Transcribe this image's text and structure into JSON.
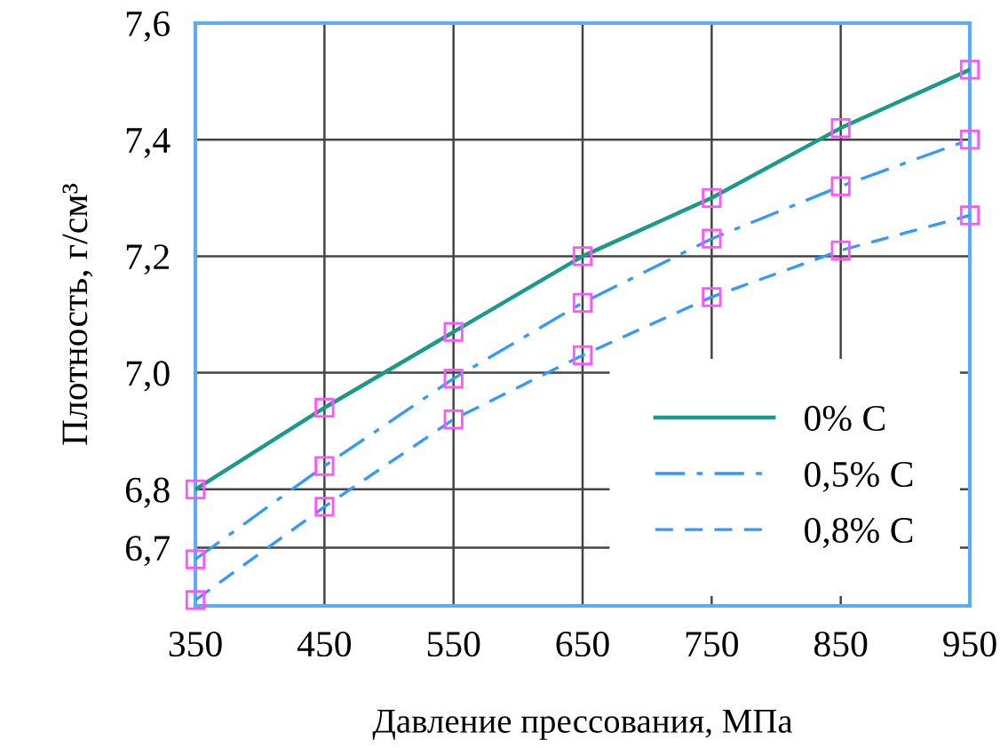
{
  "chart_data": {
    "type": "line",
    "xlabel": "Давление прессования, МПа",
    "ylabel": "Плотность, г/см³",
    "x": [
      350,
      450,
      550,
      650,
      750,
      850,
      950
    ],
    "series": [
      {
        "name": "0% C",
        "color": "#1a9a8a",
        "line_style": "solid",
        "colors": [
          "#ff55ff",
          "#ff55ff",
          "#ff55ff",
          "#ff55ff",
          "#ff55ff",
          "#ff55ff",
          "#ff55ff"
        ],
        "values": [
          6.8,
          6.94,
          7.07,
          7.2,
          7.3,
          7.42,
          7.52
        ]
      },
      {
        "name": "0,5% C",
        "color": "#3399ff",
        "line_style": "dashdot",
        "colors": [
          "#ff55ff",
          "#ff55ff",
          "#ff55ff",
          "#ff55ff",
          "#ff55ff",
          "#ff55ff",
          "#ff55ff"
        ],
        "values": [
          6.68,
          6.84,
          6.99,
          7.12,
          7.23,
          7.32,
          7.4
        ]
      },
      {
        "name": "0,8% C",
        "color": "#3399ff",
        "line_style": "dashed",
        "colors": [
          "#ff55ff",
          "#ff55ff",
          "#ff55ff",
          "#ff55ff",
          "#ff55ff",
          "#ff55ff",
          "#ff55ff"
        ],
        "values": [
          6.61,
          6.77,
          6.92,
          7.03,
          7.13,
          7.21,
          7.27
        ]
      }
    ],
    "marker": "square",
    "xlim": [
      350,
      950
    ],
    "xticks": [
      350,
      450,
      550,
      650,
      750,
      850,
      950
    ],
    "ylim": [
      6.6,
      7.6
    ],
    "yticks": [
      {
        "value": 6.7,
        "label": "6,7"
      },
      {
        "value": 6.8,
        "label": "6,8"
      },
      {
        "value": 7.0,
        "label": "7,0"
      },
      {
        "value": 7.2,
        "label": "7,2"
      },
      {
        "value": 7.4,
        "label": "7,4"
      },
      {
        "value": 7.6,
        "label": "7,6"
      }
    ],
    "grid": true,
    "legend": "bottom right"
  }
}
